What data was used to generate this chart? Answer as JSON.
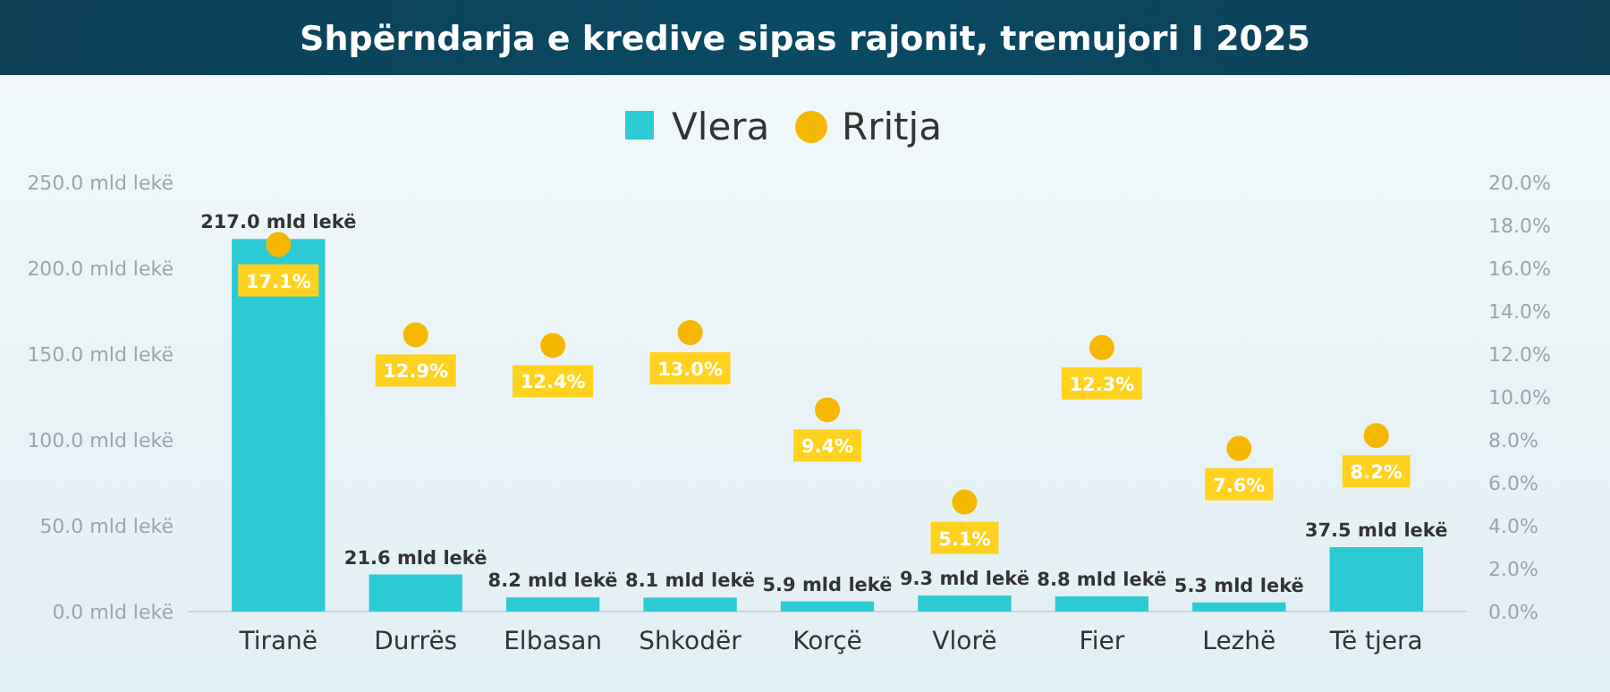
{
  "chart_data": {
    "type": "bar",
    "title": "Shpërndarja e kredive sipas rajonit, tremujori I 2025",
    "categories": [
      "Tiranë",
      "Durrës",
      "Elbasan",
      "Shkodër",
      "Korçë",
      "Vlorë",
      "Fier",
      "Lezhë",
      "Të tjera"
    ],
    "series": [
      {
        "name": "Vlera",
        "color": "#2ccad3",
        "values": [
          217.0,
          21.6,
          8.2,
          8.1,
          5.9,
          9.3,
          8.8,
          5.3,
          37.5
        ],
        "value_labels": [
          "217.0 mld lekë",
          "21.6 mld lekë",
          "8.2 mld lekë",
          "8.1 mld lekë",
          "5.9 mld lekë",
          "9.3 mld lekë",
          "8.8 mld lekë",
          "5.3 mld lekë",
          "37.5 mld lekë"
        ]
      },
      {
        "name": "Rritja",
        "type": "scatter",
        "axis": "y2",
        "color": "#f5b800",
        "values": [
          17.1,
          12.9,
          12.4,
          13.0,
          9.4,
          5.1,
          12.3,
          7.6,
          8.2
        ],
        "value_labels": [
          "17.1%",
          "12.9%",
          "12.4%",
          "13.0%",
          "9.4%",
          "5.1%",
          "12.3%",
          "7.6%",
          "8.2%"
        ]
      }
    ],
    "ylim": [
      0,
      250
    ],
    "yticks": [
      {
        "value": 0,
        "label": "0.0 mld lekë"
      },
      {
        "value": 50,
        "label": "50.0 mld lekë"
      },
      {
        "value": 100,
        "label": "100.0 mld lekë"
      },
      {
        "value": 150,
        "label": "150.0 mld lekë"
      },
      {
        "value": 200,
        "label": "200.0 mld lekë"
      },
      {
        "value": 250,
        "label": "250.0 mld lekë"
      }
    ],
    "y2lim": [
      0,
      20
    ],
    "y2ticks": [
      {
        "value": 0,
        "label": "0.0%"
      },
      {
        "value": 2,
        "label": "2.0%"
      },
      {
        "value": 4,
        "label": "4.0%"
      },
      {
        "value": 6,
        "label": "6.0%"
      },
      {
        "value": 8,
        "label": "8.0%"
      },
      {
        "value": 10,
        "label": "10.0%"
      },
      {
        "value": 12,
        "label": "12.0%"
      },
      {
        "value": 14,
        "label": "14.0%"
      },
      {
        "value": 16,
        "label": "16.0%"
      },
      {
        "value": 18,
        "label": "18.0%"
      },
      {
        "value": 20,
        "label": "20.0%"
      }
    ],
    "legend": "top",
    "marker": "circle"
  }
}
